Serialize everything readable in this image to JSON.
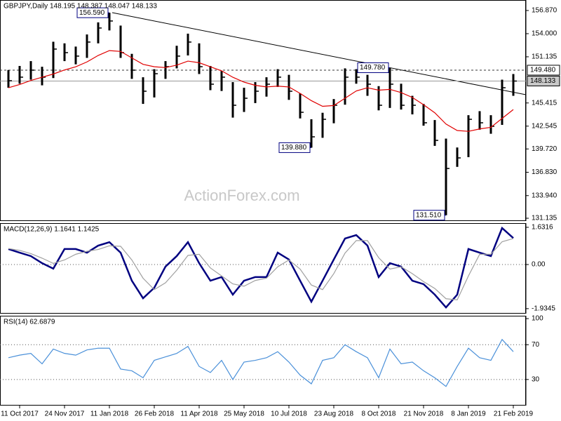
{
  "chart_data": [
    {
      "type": "ohlc",
      "title": "GBPJPY,Daily  148.195 148.387 148.047 148.133",
      "watermark": "ActionForex.com",
      "categories": [
        null,
        "11 Oct 2017",
        null,
        null,
        null,
        "24 Nov 2017",
        null,
        null,
        null,
        "11 Jan 2018",
        null,
        null,
        null,
        "26 Feb 2018",
        null,
        null,
        null,
        "11 Apr 2018",
        null,
        null,
        null,
        "25 May 2018",
        null,
        null,
        null,
        "10 Jul 2018",
        null,
        null,
        null,
        "23 Aug 2018",
        null,
        null,
        null,
        "8 Oct 2018",
        null,
        null,
        null,
        "21 Nov 2018",
        null,
        null,
        null,
        "8 Jan 2019",
        null,
        null,
        null,
        "21 Feb 2019"
      ],
      "high": [
        149.5,
        150.0,
        150.6,
        149.9,
        153.0,
        152.8,
        152.4,
        153.9,
        155.4,
        156.59,
        155.0,
        151.5,
        148.6,
        149.6,
        150.6,
        152.5,
        154.0,
        152.8,
        150.0,
        149.4,
        148.0,
        147.3,
        148.0,
        148.6,
        149.6,
        148.9,
        146.6,
        143.4,
        144.2,
        145.9,
        149.7,
        149.6,
        148.9,
        147.5,
        149.78,
        147.8,
        146.3,
        145.3,
        143.3,
        141.0,
        139.9,
        143.9,
        144.4,
        143.9,
        148.3,
        149.0
      ],
      "low": [
        147.3,
        147.8,
        148.3,
        147.6,
        148.5,
        150.6,
        150.2,
        151.0,
        152.8,
        154.4,
        151.0,
        148.4,
        145.3,
        146.1,
        148.4,
        149.7,
        151.3,
        149.0,
        147.0,
        146.9,
        143.6,
        144.3,
        145.4,
        146.2,
        147.4,
        145.8,
        143.5,
        139.88,
        141.1,
        142.9,
        145.2,
        147.8,
        146.3,
        144.5,
        144.8,
        144.6,
        144.0,
        142.6,
        140.1,
        131.51,
        137.5,
        138.7,
        142.1,
        141.6,
        142.7,
        146.3
      ],
      "close": [
        148.17,
        148.61,
        149.48,
        148.61,
        152.09,
        151.65,
        151.22,
        152.96,
        154.7,
        155.57,
        151.65,
        149.48,
        146.87,
        149.04,
        149.91,
        151.22,
        152.96,
        149.91,
        147.74,
        148.61,
        145.13,
        146.0,
        146.87,
        147.74,
        148.61,
        146.87,
        144.26,
        141.22,
        143.39,
        145.13,
        148.61,
        148.61,
        147.74,
        145.13,
        147.74,
        145.13,
        145.13,
        142.96,
        140.78,
        137.3,
        138.61,
        143.39,
        142.96,
        142.52,
        147.3,
        148.13
      ],
      "ma": [
        147.3,
        147.7,
        148.2,
        148.6,
        149.0,
        149.5,
        149.9,
        150.5,
        151.3,
        151.9,
        151.8,
        151.0,
        150.2,
        149.9,
        149.8,
        150.1,
        150.6,
        150.4,
        149.9,
        149.4,
        148.6,
        148.0,
        147.6,
        147.4,
        147.5,
        147.4,
        146.6,
        145.7,
        145.0,
        145.1,
        146.0,
        146.9,
        147.3,
        147.0,
        147.1,
        146.7,
        146.1,
        145.2,
        144.2,
        142.8,
        142.0,
        141.9,
        142.2,
        142.4,
        143.5,
        144.6
      ],
      "color": "#000000",
      "ma_color": "#e00000",
      "ylim": [
        130.79,
        158.17
      ],
      "yticks": [
        {
          "value": 156.87,
          "label": "156.870"
        },
        {
          "value": 154,
          "label": "154.000"
        },
        {
          "value": 151.135,
          "label": "151.135"
        },
        {
          "value": 145.415,
          "label": "145.415"
        },
        {
          "value": 142.545,
          "label": "142.545"
        },
        {
          "value": 139.72,
          "label": "139.720"
        },
        {
          "value": 136.83,
          "label": "136.830"
        },
        {
          "value": 133.94,
          "label": "133.940"
        },
        {
          "value": 131.135,
          "label": "131.135"
        }
      ],
      "levels": [
        {
          "value": 149.48,
          "label": "149.480",
          "style": "dashed"
        },
        {
          "value": 148.133,
          "label": "148.133",
          "style": "solid"
        }
      ],
      "annotations": [
        {
          "value": 156.59,
          "label": "156.590"
        },
        {
          "value": 139.88,
          "label": "139.880"
        },
        {
          "value": 149.78,
          "label": "149.780"
        },
        {
          "value": 131.51,
          "label": "131.510"
        }
      ]
    },
    {
      "type": "line",
      "title": "MACD(12,26,9) 1.1641 1.1425",
      "series": [
        {
          "color": "#000080",
          "values": [
            0.68,
            0.52,
            0.37,
            0.06,
            -0.18,
            0.68,
            0.68,
            0.52,
            0.83,
            0.98,
            0.52,
            -0.71,
            -1.48,
            -1.02,
            -0.09,
            0.37,
            0.98,
            0.06,
            -0.71,
            -0.55,
            -1.32,
            -0.71,
            -0.55,
            -0.55,
            0.52,
            0.22,
            -0.71,
            -1.63,
            -0.71,
            0.22,
            1.14,
            1.29,
            0.83,
            -0.55,
            0.06,
            -0.09,
            -0.71,
            -0.86,
            -1.32,
            -1.88,
            -1.32,
            0.68,
            0.52,
            0.37,
            1.6,
            1.16
          ]
        },
        {
          "color": "#a0a0a0",
          "values": [
            0.7,
            0.62,
            0.48,
            0.28,
            0.05,
            0.2,
            0.45,
            0.58,
            0.66,
            0.82,
            0.8,
            0.2,
            -0.6,
            -1.1,
            -0.8,
            -0.25,
            0.4,
            0.45,
            -0.15,
            -0.5,
            -0.85,
            -0.95,
            -0.7,
            -0.6,
            -0.1,
            0.2,
            -0.2,
            -0.9,
            -1.1,
            -0.4,
            0.5,
            1.05,
            1.05,
            0.3,
            -0.2,
            -0.1,
            -0.4,
            -0.75,
            -1.05,
            -1.5,
            -1.55,
            -0.5,
            0.45,
            0.45,
            1.0,
            1.14
          ]
        }
      ],
      "ylim": [
        -2.154,
        1.815
      ],
      "yticks": [
        1.6316,
        {
          "value": 0,
          "label": "0.00"
        },
        -1.9345
      ],
      "hlines": [
        0
      ]
    },
    {
      "type": "line",
      "title": "RSI(14) 62.6879",
      "series": [
        {
          "color": "#4a90d9",
          "values": [
            55,
            58,
            60,
            48,
            65,
            60,
            58,
            64,
            66,
            66,
            42,
            40,
            32,
            52,
            56,
            60,
            68,
            45,
            38,
            52,
            30,
            50,
            52,
            55,
            62,
            50,
            35,
            25,
            52,
            55,
            70,
            62,
            55,
            32,
            65,
            48,
            50,
            40,
            32,
            22,
            45,
            66,
            55,
            52,
            76,
            62
          ]
        }
      ],
      "ylim": [
        0,
        103.3
      ],
      "yticks": [
        100,
        70,
        30
      ],
      "hlines": [
        70,
        30
      ]
    }
  ]
}
